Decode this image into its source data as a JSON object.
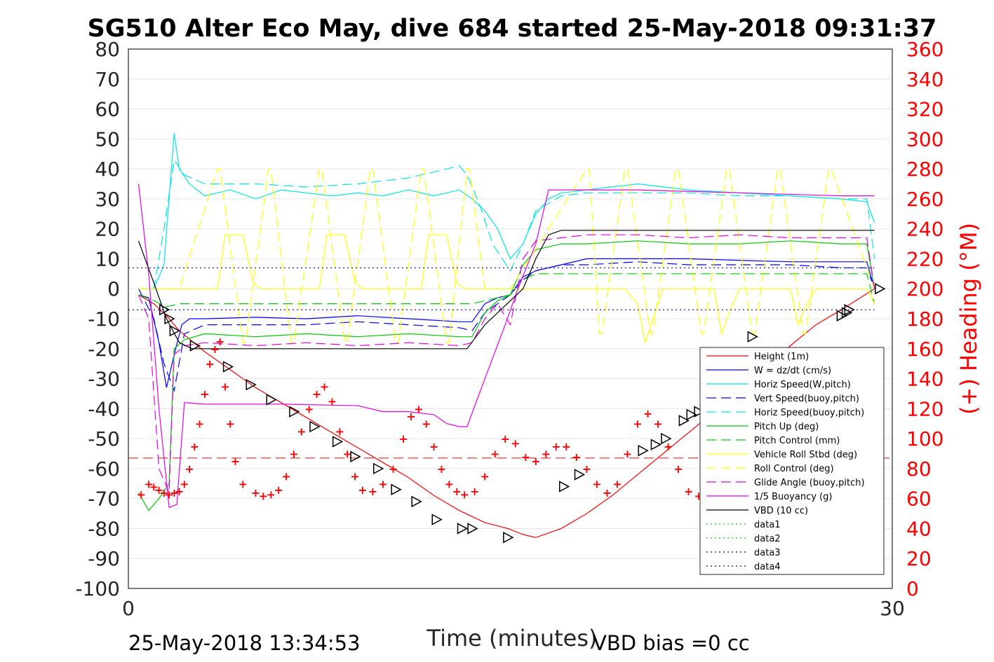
{
  "chart_data": {
    "type": "line",
    "title": "SG510 Alter Eco May, dive 684 started 25-May-2018 09:31:37",
    "xlabel": "Time (minutes)",
    "ylabel_right": "(+) Heading (°M)",
    "xlim": [
      0,
      30
    ],
    "ylim_left": [
      -100,
      80
    ],
    "ylim_right": [
      0,
      360
    ],
    "x_ticks": [
      "0",
      "30"
    ],
    "y_ticks_left": [
      "80",
      "70",
      "60",
      "50",
      "40",
      "30",
      "20",
      "10",
      "0",
      "-10",
      "-20",
      "-30",
      "-40",
      "-50",
      "-60",
      "-70",
      "-80",
      "-90",
      "-100"
    ],
    "y_ticks_right": [
      "360",
      "340",
      "320",
      "300",
      "280",
      "260",
      "240",
      "220",
      "200",
      "180",
      "160",
      "140",
      "120",
      "100",
      "80",
      "60",
      "40",
      "20",
      "0"
    ],
    "grid": true,
    "legend_position": "bottom-right",
    "footer_left": "25-May-2018 13:34:53",
    "footer_right": "VBD bias =0 cc",
    "series": [
      {
        "name": "Height (1m)",
        "color": "#ff0000",
        "style": "solid",
        "x": [
          0.4,
          1,
          1.5,
          2,
          3,
          4,
          5,
          6,
          7,
          8,
          9,
          10,
          11,
          12,
          13,
          14,
          14.9,
          15.5,
          16,
          17,
          18,
          19,
          20,
          21,
          22,
          23,
          24,
          25,
          26,
          27,
          28,
          29.3
        ],
        "y": [
          -2,
          -5,
          -9,
          -14,
          -21,
          -27,
          -33,
          -38,
          -43,
          -48,
          -53,
          -58,
          -63,
          -69,
          -74,
          -78,
          -80,
          -82,
          -83,
          -80,
          -75,
          -69,
          -62,
          -55,
          -48,
          -41,
          -34,
          -26,
          -19,
          -12,
          -7,
          0
        ]
      },
      {
        "name": "W = dz/dt (cm/s)",
        "color": "#0000ff",
        "style": "solid",
        "x": [
          0.4,
          0.8,
          1.2,
          1.5,
          1.8,
          2.1,
          2.4,
          3,
          5,
          7,
          9,
          11,
          13,
          13.5,
          14,
          14.5,
          15,
          15.5,
          16,
          17,
          18,
          20,
          22,
          24,
          26,
          28,
          29,
          29.3
        ],
        "y": [
          -2,
          -3,
          -18,
          -33,
          -22,
          -12,
          -10,
          -10,
          -9.5,
          -10,
          -9,
          -10,
          -11,
          -11,
          -5,
          -3,
          -2,
          4,
          6,
          8,
          10,
          10,
          10,
          9.5,
          9,
          9,
          9,
          0
        ]
      },
      {
        "name": "Horiz Speed(W,pitch)",
        "color": "#00e6e6",
        "style": "solid",
        "x": [
          0.4,
          1,
          1.4,
          1.8,
          2,
          2.4,
          3,
          4,
          5,
          6,
          7,
          8,
          9,
          10,
          11,
          12,
          13,
          13.5,
          14,
          14.5,
          15,
          15.5,
          16,
          16.5,
          17,
          18,
          20,
          22,
          24,
          26,
          28,
          29,
          29.3
        ],
        "y": [
          0,
          0,
          8,
          52,
          40,
          35,
          31,
          33,
          30,
          33,
          32,
          31,
          32,
          31,
          33,
          31,
          33,
          30,
          26,
          20,
          10,
          15,
          25,
          30,
          32,
          33,
          35,
          33,
          32,
          31,
          30,
          29,
          22
        ]
      },
      {
        "name": "Vert Speed(buoy,pitch)",
        "color": "#0000ff",
        "style": "dashed",
        "x": [
          0.4,
          1,
          1.4,
          1.8,
          2.2,
          3,
          5,
          7,
          9,
          11,
          13,
          13.5,
          14,
          14.5,
          15,
          15.5,
          16,
          17,
          18,
          20,
          22,
          24,
          26,
          28,
          29,
          29.3
        ],
        "y": [
          0,
          -10,
          -25,
          -34,
          -15,
          -12,
          -12,
          -12,
          -11,
          -12,
          -13,
          -14,
          -8,
          -5,
          -2,
          3,
          6,
          8,
          8,
          9,
          8,
          8,
          8,
          7,
          7,
          0
        ]
      },
      {
        "name": "Horiz Speed(buoy,pitch)",
        "color": "#00e6e6",
        "style": "dashed",
        "x": [
          0.4,
          1,
          1.4,
          1.8,
          2.2,
          3,
          5,
          7,
          9,
          11,
          12,
          13,
          13.3,
          13.8,
          14.3,
          15,
          15.5,
          16,
          17,
          18,
          20,
          22,
          24,
          26,
          28,
          29,
          29.3
        ],
        "y": [
          0,
          0,
          20,
          43,
          38,
          35,
          35,
          34,
          35,
          37,
          39,
          41,
          38,
          28,
          15,
          6,
          15,
          26,
          31,
          32,
          32,
          32,
          31,
          31,
          30,
          30,
          10
        ]
      },
      {
        "name": "Pitch Up (deg)",
        "color": "#00cc00",
        "style": "solid",
        "x": [
          0.4,
          0.8,
          1.2,
          1.6,
          1.8,
          2.2,
          3,
          5,
          7,
          9,
          11,
          13,
          13.5,
          14,
          14.5,
          15,
          15.5,
          16,
          17,
          18,
          20,
          22,
          24,
          26,
          28,
          29,
          29.3
        ],
        "y": [
          -68,
          -74,
          -70,
          -65,
          -20,
          -17,
          -15,
          -16,
          -15,
          -16,
          -15,
          -16,
          -16,
          -8,
          -4,
          -2,
          8,
          13,
          15,
          15,
          16,
          15,
          15,
          16,
          15,
          15,
          0
        ]
      },
      {
        "name": "Pitch Control (mm)",
        "color": "#00cc00",
        "style": "dashed",
        "x": [
          0.4,
          1,
          1.5,
          2,
          3,
          6,
          10,
          13,
          13.5,
          14,
          14.5,
          15,
          15.5,
          16,
          20,
          25,
          29,
          29.3
        ],
        "y": [
          -2,
          -4,
          -6,
          -5,
          -5,
          -5,
          -5,
          -5,
          -5,
          -4,
          -3,
          -2,
          3,
          5,
          5,
          5,
          5,
          -5
        ]
      },
      {
        "name": "Vehicle Roll Stbd (deg)",
        "color": "#ffff00",
        "style": "solid",
        "x": [
          0.4,
          3.2,
          3.5,
          3.8,
          4.5,
          4.9,
          5.2,
          6,
          7.2,
          7.5,
          7.8,
          8.5,
          8.9,
          9.2,
          10,
          11.2,
          11.5,
          11.8,
          12.5,
          12.9,
          13.2,
          13.5,
          14,
          15,
          16,
          18,
          19.5,
          20,
          20.3,
          20.6,
          21,
          22,
          23,
          23.3,
          23.6,
          24,
          25,
          26,
          26.3,
          26.6,
          27,
          28,
          29,
          29.3
        ],
        "y": [
          0,
          0,
          0,
          18,
          18,
          2,
          0,
          0,
          0,
          0,
          18,
          18,
          2,
          0,
          0,
          0,
          0,
          18,
          18,
          2,
          0,
          0,
          0,
          0,
          0,
          0,
          0,
          -5,
          -18,
          -10,
          0,
          0,
          0,
          -15,
          -8,
          0,
          0,
          0,
          -12,
          -6,
          0,
          0,
          0,
          -5
        ]
      },
      {
        "name": "Roll Control (deg)",
        "color": "#ffff00",
        "style": "dashed",
        "x": [
          0.4,
          2,
          3.5,
          3.6,
          4.5,
          4.6,
          5.5,
          5.6,
          6.4,
          6.5,
          7.5,
          7.6,
          8.5,
          8.6,
          9.5,
          9.6,
          10.5,
          10.6,
          11.5,
          11.6,
          12.5,
          12.6,
          13.3,
          13.4,
          14,
          15,
          18,
          18.1,
          18.5,
          18.6,
          19.5,
          19.6,
          20.5,
          20.6,
          21.5,
          21.6,
          22.5,
          22.6,
          23.5,
          23.6,
          24.5,
          24.6,
          25.5,
          25.6,
          26.5,
          26.6,
          27.5,
          27.6,
          29.3
        ],
        "y": [
          0,
          0,
          40,
          40,
          -18,
          -18,
          40,
          40,
          -18,
          -18,
          40,
          40,
          -18,
          -18,
          40,
          40,
          -18,
          -18,
          40,
          40,
          -18,
          -18,
          40,
          40,
          0,
          0,
          40,
          40,
          -15,
          -15,
          40,
          40,
          -15,
          -15,
          40,
          40,
          -15,
          -15,
          40,
          40,
          -15,
          -15,
          40,
          40,
          -15,
          -15,
          40,
          40,
          0
        ]
      },
      {
        "name": "Glide Angle (buoy,pitch)",
        "color": "#e600e6",
        "style": "dashed",
        "x": [
          0.4,
          0.8,
          1.2,
          1.6,
          1.8,
          2.2,
          3,
          5,
          7,
          9,
          11,
          13,
          13.5,
          14,
          14.5,
          15,
          15.5,
          16,
          17,
          18,
          20,
          22,
          24,
          26,
          28,
          29,
          29.3
        ],
        "y": [
          -2,
          -10,
          -60,
          -68,
          -22,
          -19,
          -18,
          -19,
          -18,
          -19,
          -18,
          -19,
          -18,
          -10,
          -5,
          -12,
          10,
          16,
          17,
          18,
          18,
          17,
          18,
          17,
          17,
          17,
          0
        ]
      },
      {
        "name": "1/5 Buoyancy (g)",
        "color": "#e600e6",
        "style": "solid",
        "x": [
          0.4,
          0.8,
          1.2,
          1.6,
          1.9,
          2.2,
          3,
          6,
          9,
          10,
          11,
          12,
          12.5,
          13,
          13.3,
          14,
          14.8,
          15.3,
          16,
          16.5,
          17,
          20,
          24,
          28,
          29.3
        ],
        "y": [
          35,
          5,
          -40,
          -73,
          -72,
          -38,
          -38.5,
          -38.5,
          -39,
          -41,
          -41,
          -42,
          -45,
          -46,
          -46,
          -30,
          -12,
          0,
          15,
          33,
          33,
          33,
          32,
          31,
          31
        ]
      },
      {
        "name": "VBD (10 cc)",
        "color": "#000000",
        "style": "solid",
        "x": [
          0.4,
          1,
          1.5,
          2,
          2.5,
          3,
          6,
          10,
          13,
          13.3,
          14,
          15,
          15.5,
          16,
          16.5,
          17,
          20,
          25,
          29.3
        ],
        "y": [
          16,
          2,
          -10,
          -18,
          -20,
          -20,
          -20,
          -20,
          -20,
          -20,
          -12,
          -4,
          0,
          10,
          18,
          19.5,
          19.5,
          19.5,
          19.5
        ]
      },
      {
        "name": "data1",
        "color": "#00cc00",
        "style": "dotted",
        "x": [],
        "y": []
      },
      {
        "name": "data2",
        "color": "#00cc00",
        "style": "dotted",
        "x": [],
        "y": []
      },
      {
        "name": "data3",
        "color": "#000080",
        "style": "dotted",
        "x": [
          0,
          29.3
        ],
        "y": [
          -7,
          -7
        ]
      },
      {
        "name": "data4",
        "color": "#0000cc",
        "style": "dotted",
        "x": [
          0,
          29.3
        ],
        "y": [
          7,
          7
        ]
      }
    ],
    "reference_lines": [
      {
        "color": "#ff0000",
        "style": "dashed",
        "y": -56.5
      }
    ],
    "markers_triangle": {
      "x": [
        1.4,
        1.6,
        1.8,
        2.6,
        3.9,
        4.8,
        5.6,
        6.5,
        7.3,
        8.2,
        8.9,
        9.8,
        10.5,
        11.3,
        12.1,
        13.1,
        13.5,
        14.9,
        17.1,
        17.7,
        20.2,
        20.7,
        21.1,
        21.8,
        22.1,
        22.4,
        24.5,
        28.0,
        28.2,
        28.3,
        29.5
      ],
      "y": [
        -7,
        -10,
        -14,
        -19,
        -26,
        -32,
        -37,
        -41,
        -46,
        -51,
        -56,
        -60,
        -67,
        -71,
        -77,
        -80,
        -80,
        -83,
        -66,
        -62,
        -54,
        -52,
        -50,
        -44,
        -42,
        -41,
        -16,
        -9,
        -8,
        -7,
        0
      ]
    },
    "heading_right_axis": {
      "name": "(+) Heading",
      "color": "#ff0000",
      "marker": "+",
      "x": [
        0.5,
        0.8,
        1.0,
        1.2,
        1.4,
        1.6,
        1.8,
        2,
        2.2,
        2.4,
        2.6,
        2.8,
        3,
        3.2,
        3.4,
        3.6,
        3.8,
        4,
        4.2,
        4.5,
        5,
        5.3,
        5.6,
        5.9,
        6.2,
        6.5,
        6.8,
        7.1,
        7.4,
        7.7,
        8,
        8.3,
        8.6,
        8.9,
        9.2,
        9.6,
        10,
        10.4,
        10.8,
        11.1,
        11.4,
        11.7,
        12,
        12.3,
        12.6,
        12.9,
        13.2,
        13.6,
        14,
        14.4,
        14.8,
        15.2,
        15.6,
        16,
        16.4,
        16.8,
        17.2,
        17.6,
        18,
        18.4,
        18.8,
        19.2,
        19.6,
        20,
        20.4,
        20.8,
        21.2,
        21.6,
        22,
        22.4,
        22.8,
        23.2
      ],
      "y": [
        63,
        70,
        68,
        66,
        64,
        63,
        64,
        65,
        70,
        80,
        95,
        110,
        130,
        150,
        160,
        165,
        135,
        110,
        85,
        70,
        64,
        62,
        63,
        66,
        75,
        90,
        105,
        120,
        130,
        135,
        125,
        105,
        90,
        75,
        66,
        65,
        70,
        80,
        100,
        115,
        120,
        110,
        95,
        80,
        70,
        65,
        63,
        65,
        75,
        90,
        100,
        97,
        88,
        85,
        90,
        95,
        95,
        88,
        80,
        70,
        64,
        70,
        90,
        110,
        117,
        110,
        95,
        80,
        65,
        62,
        70,
        95
      ]
    }
  }
}
